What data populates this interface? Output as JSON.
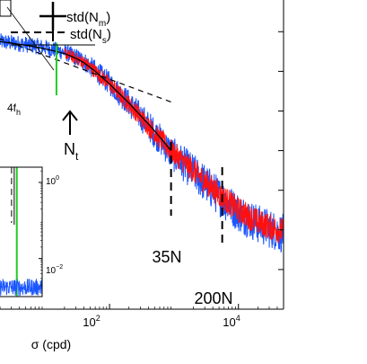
{
  "chart_data": {
    "type": "line",
    "scale": {
      "x": "log",
      "y": "log"
    },
    "xlabel": "σ (cpd)",
    "x_ticks": [
      {
        "value": 100,
        "base": "10",
        "exp": "2"
      },
      {
        "value": 10000,
        "base": "10",
        "exp": "4"
      }
    ],
    "xlim_log10": [
      0.3,
      4.7
    ],
    "ylim_log10": [
      -5.0,
      2.8
    ],
    "legend": {
      "position": "top",
      "entries": [
        {
          "label": "std(N",
          "sub": "m",
          "tail": ")",
          "style": "solid"
        },
        {
          "label": "std(N",
          "sub": "s",
          "tail": ")",
          "style": "dashed"
        }
      ]
    },
    "annotations": {
      "four_fh": {
        "text": "4f",
        "sub": "h",
        "x": 15,
        "color": "#22cc22"
      },
      "nt": {
        "text": "N",
        "sub": "t",
        "x": 40
      },
      "n35": {
        "text": "35N",
        "x": 900
      },
      "n200": {
        "text": "200N",
        "x": 5600
      }
    },
    "series": [
      {
        "color": "#1a55ff",
        "x": [
          2,
          5,
          10,
          20,
          30,
          40,
          60,
          100,
          200,
          500,
          900,
          2000,
          5000,
          10000,
          20000,
          50000
        ],
        "y_log10": [
          1.75,
          1.68,
          1.6,
          1.48,
          1.36,
          1.25,
          1.02,
          0.7,
          0.2,
          -0.55,
          -1.05,
          -1.55,
          -2.15,
          -2.55,
          -2.85,
          -3.1
        ]
      },
      {
        "color": "#ff1010",
        "x": [
          20,
          40,
          60,
          100,
          200,
          500,
          900,
          2000,
          5000,
          10000,
          20000,
          50000
        ],
        "y_log10": [
          1.46,
          1.23,
          1.0,
          0.68,
          0.18,
          -0.55,
          -1.0,
          -1.5,
          -2.1,
          -2.5,
          -2.8,
          -3.05
        ]
      },
      {
        "color": "#000000",
        "x": [
          2,
          5,
          10,
          20,
          30,
          40,
          60,
          100,
          200,
          500,
          900
        ],
        "y_log10": [
          1.75,
          1.66,
          1.57,
          1.45,
          1.33,
          1.22,
          1.0,
          0.68,
          0.2,
          -0.5,
          -1.0
        ]
      }
    ],
    "dashed_guide": {
      "x": [
        1,
        1000
      ],
      "y_log10": [
        2.0,
        0.2
      ]
    },
    "vertical_markers": [
      {
        "x": 900,
        "style": "dashed"
      },
      {
        "x": 5600,
        "style": "dashed"
      },
      {
        "x": 15,
        "style": "solid-green"
      }
    ],
    "inset": {
      "y_ticks": [
        {
          "value": 1,
          "base": "10",
          "exp": "0"
        },
        {
          "value": 0.01,
          "base": "10",
          "exp": "−2"
        }
      ],
      "ylim_log10": [
        -3.0,
        0.4
      ],
      "xlim_log10": [
        0.3,
        2.5
      ],
      "green_line_x": 15,
      "dashed_line_x": 8,
      "solid_line_x": 11,
      "noise_level_log10": -2.8
    }
  }
}
